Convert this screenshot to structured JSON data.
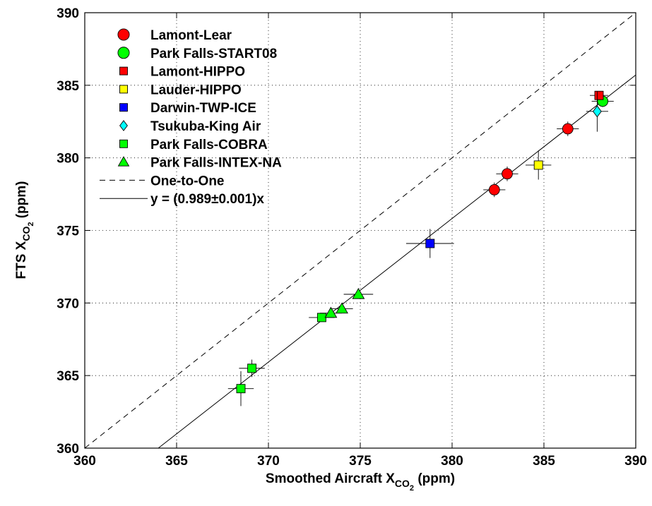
{
  "chart_data": {
    "type": "scatter",
    "title": "",
    "xlabel": "Smoothed Aircraft X",
    "xlabel_sub": "CO",
    "xlabel_subsub": "2",
    "xlabel_unit": "(ppm)",
    "ylabel": "FTS X",
    "ylabel_sub": "CO",
    "ylabel_subsub": "2",
    "ylabel_unit": "(ppm)",
    "xlim": [
      360,
      390
    ],
    "ylim": [
      360,
      390
    ],
    "xticks": [
      360,
      365,
      370,
      375,
      380,
      385,
      390
    ],
    "yticks": [
      360,
      365,
      370,
      375,
      380,
      385,
      390
    ],
    "grid": true,
    "legend_position": "top-left",
    "series": [
      {
        "name": "Lamont-Lear",
        "marker": "circle",
        "color": "#ff0000",
        "points": [
          {
            "x": 382.3,
            "y": 377.8,
            "xerr": 0.6,
            "yerr": 0.5
          },
          {
            "x": 383.0,
            "y": 378.9,
            "xerr": 0.6,
            "yerr": 0.5
          },
          {
            "x": 386.3,
            "y": 382.0,
            "xerr": 0.6,
            "yerr": 0.5
          }
        ]
      },
      {
        "name": "Park Falls-START08",
        "marker": "circle",
        "color": "#00ff00",
        "points": [
          {
            "x": 388.2,
            "y": 383.9,
            "xerr": 0.6,
            "yerr": 0.4
          }
        ]
      },
      {
        "name": "Lamont-HIPPO",
        "marker": "square",
        "color": "#ff0000",
        "points": [
          {
            "x": 388.0,
            "y": 384.3,
            "xerr": 0.5,
            "yerr": 0.3
          }
        ]
      },
      {
        "name": "Lauder-HIPPO",
        "marker": "square",
        "color": "#ffff00",
        "points": [
          {
            "x": 384.7,
            "y": 379.5,
            "xerr": 0.7,
            "yerr": 1.0
          }
        ]
      },
      {
        "name": "Darwin-TWP-ICE",
        "marker": "square",
        "color": "#0000ff",
        "points": [
          {
            "x": 378.8,
            "y": 374.1,
            "xerr": 1.3,
            "yerr": 1.0
          }
        ]
      },
      {
        "name": "Tsukuba-King Air",
        "marker": "diamond",
        "color": "#00ffff",
        "points": [
          {
            "x": 387.9,
            "y": 383.2,
            "xerr": 0.6,
            "yerr": 1.4
          }
        ]
      },
      {
        "name": "Park Falls-COBRA",
        "marker": "square",
        "color": "#00ff00",
        "points": [
          {
            "x": 368.5,
            "y": 364.1,
            "xerr": 0.7,
            "yerr": 1.2
          },
          {
            "x": 369.1,
            "y": 365.5,
            "xerr": 0.7,
            "yerr": 0.6
          },
          {
            "x": 372.9,
            "y": 369.0,
            "xerr": 0.7,
            "yerr": 0.3
          }
        ]
      },
      {
        "name": "Park Falls-INTEX-NA",
        "marker": "triangle",
        "color": "#00ff00",
        "points": [
          {
            "x": 373.4,
            "y": 369.3,
            "xerr": 0.6,
            "yerr": 0.3
          },
          {
            "x": 374.0,
            "y": 369.6,
            "xerr": 0.6,
            "yerr": 0.3
          },
          {
            "x": 374.9,
            "y": 370.6,
            "xerr": 0.8,
            "yerr": 0.3
          }
        ]
      }
    ],
    "lines": [
      {
        "name": "One-to-One",
        "style": "dashed",
        "slope": 1.0
      },
      {
        "name": "y = (0.989±0.001)x",
        "style": "solid",
        "slope": 0.989
      }
    ]
  }
}
